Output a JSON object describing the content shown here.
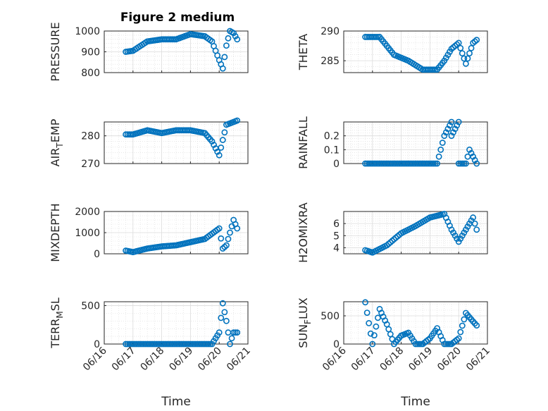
{
  "title": "Figure 2 medium",
  "xlabel": "Time",
  "x_tick_labels": [
    "06/16",
    "06/17",
    "06/18",
    "06/19",
    "06/20",
    "06/21"
  ],
  "marker_color": "#0072BD",
  "chart_data": [
    {
      "type": "scatter",
      "ylabel": "PRESSURE",
      "ylim": [
        800,
        1000
      ],
      "yticks": [
        800,
        900,
        1000
      ],
      "grid": true,
      "x": [
        "06/16 18:00",
        "06/17 00:00",
        "06/17 12:00",
        "06/18 00:00",
        "06/18 12:00",
        "06/19 00:00",
        "06/19 12:00",
        "06/19 18:00",
        "06/20 00:00",
        "06/20 03:00",
        "06/20 06:00",
        "06/20 09:00",
        "06/20 12:00",
        "06/20 15:00"
      ],
      "y": [
        900,
        905,
        950,
        960,
        960,
        985,
        975,
        950,
        860,
        820,
        930,
        1000,
        990,
        960
      ]
    },
    {
      "type": "scatter",
      "ylabel": "THETA",
      "ylim": [
        283,
        290
      ],
      "yticks": [
        285,
        290
      ],
      "grid": true,
      "x": [
        "06/16 18:00",
        "06/17 06:00",
        "06/17 18:00",
        "06/18 06:00",
        "06/18 18:00",
        "06/19 06:00",
        "06/19 12:00",
        "06/19 18:00",
        "06/20 00:00",
        "06/20 06:00",
        "06/20 12:00",
        "06/20 15:00"
      ],
      "y": [
        289,
        289,
        286,
        285,
        283.5,
        283.5,
        285,
        287,
        288,
        284.5,
        288,
        288.5
      ]
    },
    {
      "type": "scatter",
      "ylabel": "AIR_TEMP",
      "ylim": [
        270,
        285
      ],
      "yticks": [
        270,
        280
      ],
      "grid": true,
      "x": [
        "06/16 18:00",
        "06/17 00:00",
        "06/17 12:00",
        "06/18 00:00",
        "06/18 12:00",
        "06/19 00:00",
        "06/19 12:00",
        "06/19 18:00",
        "06/20 00:00",
        "06/20 06:00",
        "06/20 12:00",
        "06/20 15:00"
      ],
      "y": [
        280.5,
        280.5,
        282,
        281,
        282,
        282,
        281,
        278,
        273,
        284,
        285,
        285.5
      ]
    },
    {
      "type": "scatter",
      "ylabel": "RAINFALL",
      "ylim": [
        0,
        0.3
      ],
      "yticks": [
        0,
        0.1,
        0.2
      ],
      "grid": true,
      "x": [
        "06/16 18:00",
        "06/17 12:00",
        "06/18 12:00",
        "06/19 06:00",
        "06/19 12:00",
        "06/19 18:00",
        "06/19 18:00",
        "06/20 00:00",
        "06/20 00:00",
        "06/20 06:00",
        "06/20 09:00",
        "06/20 15:00"
      ],
      "y": [
        0,
        0,
        0,
        0,
        0.2,
        0.3,
        0.2,
        0.3,
        0,
        0,
        0.1,
        0
      ]
    },
    {
      "type": "scatter",
      "ylabel": "MIXDEPTH",
      "ylim": [
        0,
        2000
      ],
      "yticks": [
        0,
        1000,
        2000
      ],
      "grid": true,
      "x": [
        "06/16 18:00",
        "06/17 00:00",
        "06/17 12:00",
        "06/18 00:00",
        "06/18 12:00",
        "06/19 00:00",
        "06/19 12:00",
        "06/20 00:00",
        "06/20 03:00",
        "06/20 06:00",
        "06/20 12:00",
        "06/20 15:00"
      ],
      "y": [
        150,
        80,
        250,
        350,
        400,
        550,
        700,
        1200,
        250,
        400,
        1600,
        1200
      ]
    },
    {
      "type": "scatter",
      "ylabel": "H2OMIXRA",
      "ylim": [
        3.5,
        7
      ],
      "yticks": [
        4,
        5,
        6
      ],
      "grid": true,
      "x": [
        "06/16 18:00",
        "06/17 00:00",
        "06/17 12:00",
        "06/18 00:00",
        "06/18 12:00",
        "06/19 00:00",
        "06/19 12:00",
        "06/19 18:00",
        "06/20 00:00",
        "06/20 06:00",
        "06/20 12:00",
        "06/20 15:00"
      ],
      "y": [
        3.8,
        3.6,
        4.2,
        5.2,
        5.8,
        6.5,
        6.8,
        5.5,
        4.5,
        5.5,
        6.5,
        5.5
      ]
    },
    {
      "type": "scatter",
      "ylabel": "TERR_MSL",
      "ylim": [
        0,
        550
      ],
      "yticks": [
        0,
        500
      ],
      "grid": true,
      "x": [
        "06/16 18:00",
        "06/17 12:00",
        "06/18 12:00",
        "06/19 12:00",
        "06/19 18:00",
        "06/20 00:00",
        "06/20 03:00",
        "06/20 06:00",
        "06/20 09:00",
        "06/20 12:00",
        "06/20 15:00"
      ],
      "y": [
        0,
        0,
        0,
        0,
        0,
        150,
        530,
        300,
        0,
        150,
        150
      ]
    },
    {
      "type": "scatter",
      "ylabel": "SUN_FLUX",
      "ylim": [
        0,
        750
      ],
      "yticks": [
        0,
        500
      ],
      "grid": true,
      "x": [
        "06/16 18:00",
        "06/17 00:00",
        "06/17 06:00",
        "06/17 12:00",
        "06/17 18:00",
        "06/18 00:00",
        "06/18 06:00",
        "06/18 12:00",
        "06/18 18:00",
        "06/19 00:00",
        "06/19 06:00",
        "06/19 12:00",
        "06/19 18:00",
        "06/20 00:00",
        "06/20 06:00",
        "06/20 12:00",
        "06/20 15:00"
      ],
      "y": [
        740,
        0,
        620,
        350,
        0,
        150,
        200,
        0,
        0,
        100,
        280,
        0,
        0,
        100,
        550,
        400,
        330
      ]
    }
  ]
}
